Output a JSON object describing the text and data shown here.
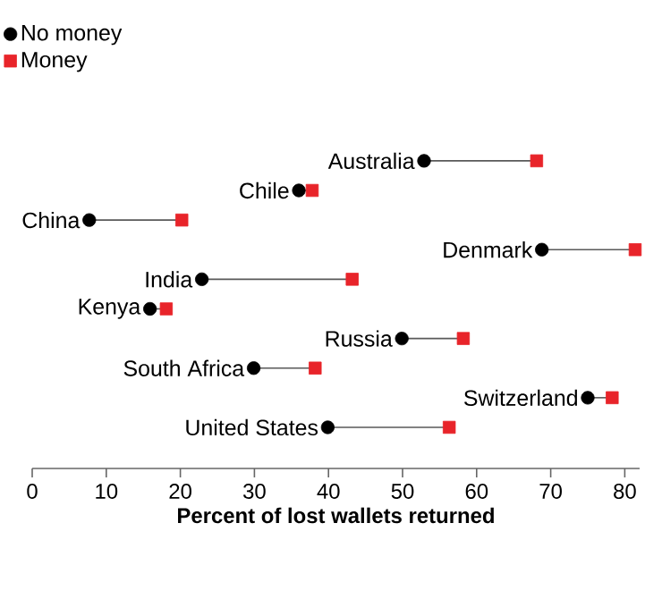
{
  "chart_data": {
    "type": "scatter",
    "orientation": "horizontal",
    "xlabel": "Percent of lost wallets returned",
    "categories": [
      "Australia",
      "Chile",
      "China",
      "Denmark",
      "India",
      "Kenya",
      "Russia",
      "South Africa",
      "Switzerland",
      "United States"
    ],
    "series": [
      {
        "name": "No money",
        "color": "#000000",
        "marker": "circle",
        "values": [
          52.9,
          36,
          7.7,
          68.8,
          22.9,
          15.9,
          49.9,
          29.9,
          75,
          39.9
        ]
      },
      {
        "name": "Money",
        "color": "#e8242a",
        "marker": "square",
        "values": [
          68.1,
          37.8,
          20.2,
          81.4,
          43.2,
          18.1,
          58.2,
          38.2,
          78.3,
          56.3
        ]
      }
    ],
    "xlim": [
      0,
      82
    ],
    "xticks": [
      0,
      10,
      20,
      30,
      40,
      50,
      60,
      70,
      80
    ],
    "legend": "top left",
    "grid": false
  }
}
